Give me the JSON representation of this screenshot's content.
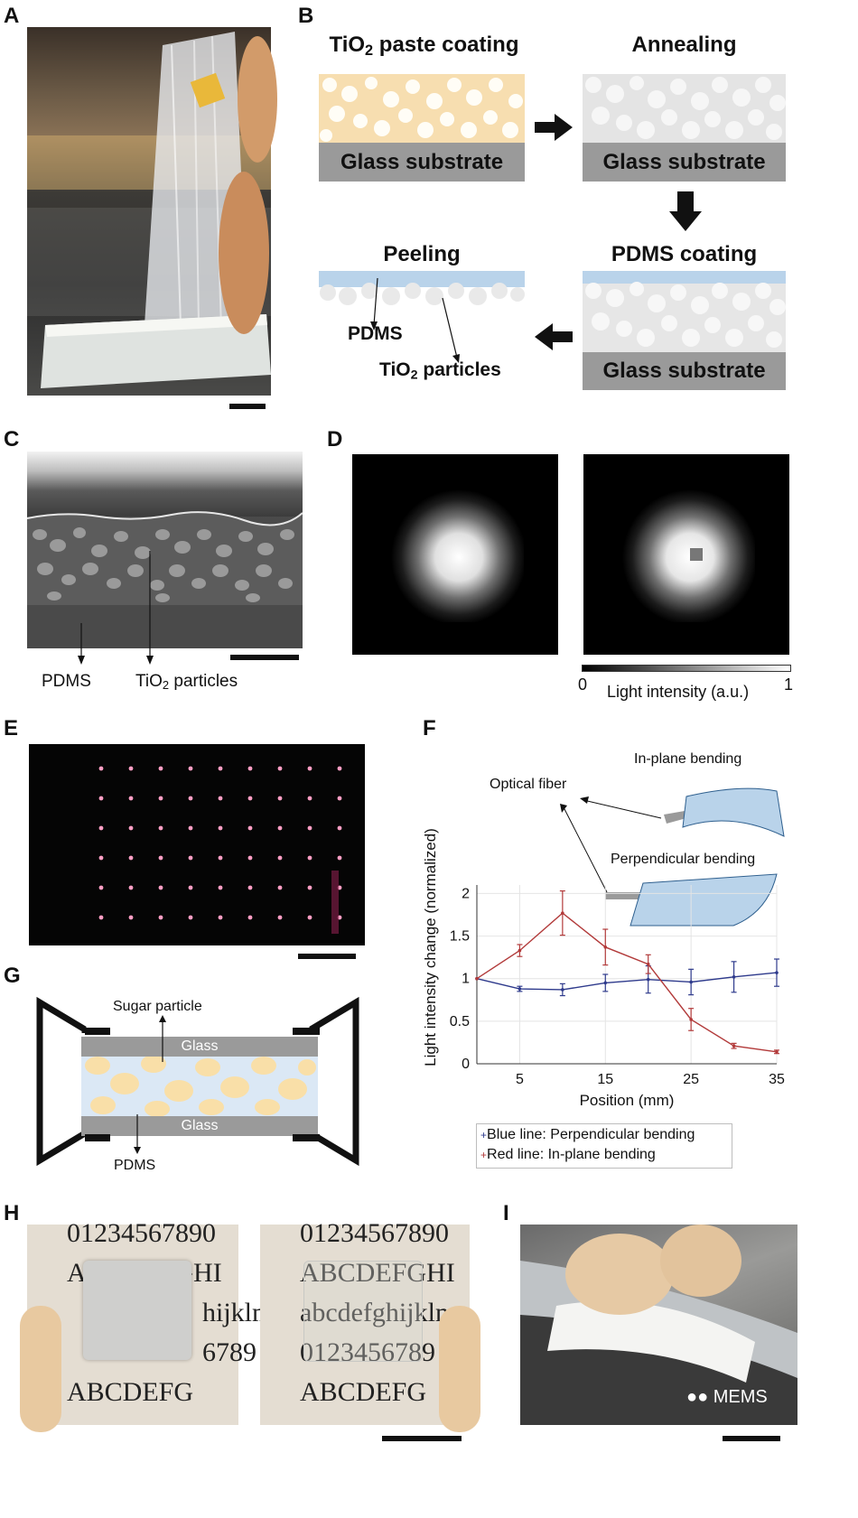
{
  "panels": {
    "A": "A",
    "B": "B",
    "C": "C",
    "D": "D",
    "E": "E",
    "F": "F",
    "G": "G",
    "H": "H",
    "I": "I"
  },
  "panelB": {
    "step1_title_pre": "TiO",
    "step1_title_sub": "2",
    "step1_title_post": " paste coating",
    "step2_title": "Annealing",
    "step3_title": "PDMS coating",
    "step4_title": "Peeling",
    "substrate": "Glass substrate",
    "pdms_label": "PDMS",
    "tio2_label_pre": "TiO",
    "tio2_label_sub": "2",
    "tio2_label_post": " particles"
  },
  "panelC": {
    "pdms_label": "PDMS",
    "tio2_label_pre": "TiO",
    "tio2_label_sub": "2",
    "tio2_label_post": " particles"
  },
  "panelD": {
    "colorbar_min": "0",
    "colorbar_max": "1",
    "colorbar_label": "Light intensity (a.u.)"
  },
  "panelF": {
    "optical_fiber": "Optical fiber",
    "inplane": "In-plane bending",
    "perpendicular": "Perpendicular bending",
    "legend_blue": "Blue line: Perpendicular bending",
    "legend_red": "Red line: In-plane bending",
    "colors": {
      "blue": "#2e3a8c",
      "red": "#b23a3a",
      "sheet": "#b9d3ea"
    }
  },
  "panelG": {
    "sugar": "Sugar particle",
    "glass_top": "Glass",
    "glass_bottom": "Glass",
    "pdms": "PDMS"
  },
  "panelH": {
    "row1": "01234567890",
    "row2": "ABCDEFGHI",
    "row3_left": "hijklm",
    "row3_right": "abcdefghijklm",
    "row4_left": "6789",
    "row4_right": "0123456789",
    "row5": "ABCDEFG"
  },
  "panelI": {
    "watermark": "MEMS"
  },
  "chart_data": {
    "type": "line",
    "xlabel": "Position (mm)",
    "ylabel": "Light intensity change (normalized)",
    "xlim": [
      0,
      35
    ],
    "ylim": [
      0,
      2.1
    ],
    "xticks": [
      5,
      15,
      25,
      35
    ],
    "yticks": [
      0,
      0.5,
      1,
      1.5,
      2
    ],
    "x": [
      0,
      5,
      10,
      15,
      20,
      25,
      30,
      35
    ],
    "grid": true,
    "legend_position": "bottom",
    "series": [
      {
        "name": "Blue line: Perpendicular bending",
        "color": "#2e3a8c",
        "values": [
          1.0,
          0.88,
          0.87,
          0.95,
          0.99,
          0.96,
          1.02,
          1.07
        ],
        "errors": [
          0.0,
          0.03,
          0.07,
          0.1,
          0.16,
          0.15,
          0.18,
          0.16
        ]
      },
      {
        "name": "Red line: In-plane bending",
        "color": "#b23a3a",
        "values": [
          1.0,
          1.33,
          1.77,
          1.37,
          1.17,
          0.52,
          0.21,
          0.14
        ],
        "errors": [
          0.0,
          0.07,
          0.26,
          0.21,
          0.11,
          0.13,
          0.03,
          0.02
        ]
      }
    ]
  }
}
